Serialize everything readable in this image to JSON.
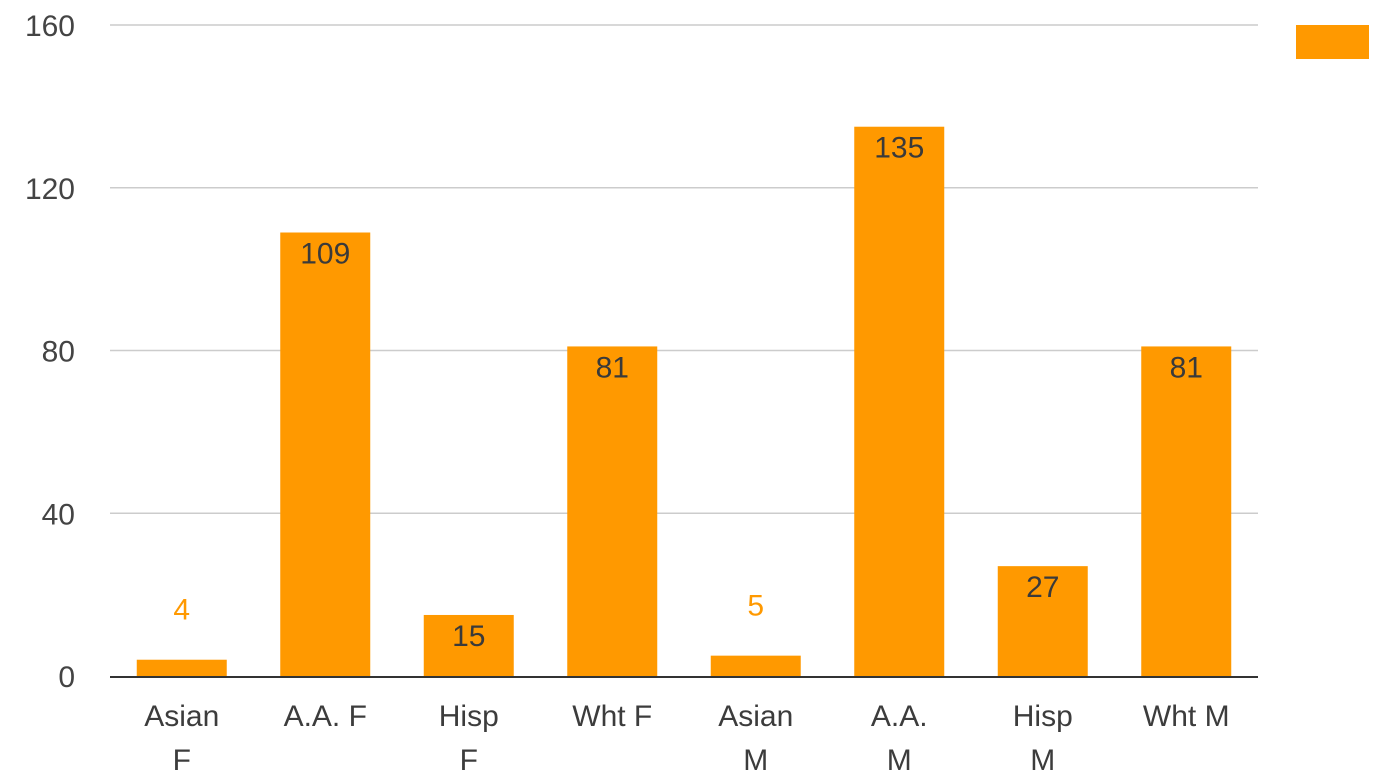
{
  "chart_data": {
    "type": "bar",
    "categories": [
      [
        "Asian",
        "F"
      ],
      [
        "A.A. F"
      ],
      [
        "Hisp",
        "F"
      ],
      [
        "Wht F"
      ],
      [
        "Asian",
        "M"
      ],
      [
        "A.A.",
        "M"
      ],
      [
        "Hisp",
        "M"
      ],
      [
        "Wht M"
      ]
    ],
    "series": [
      {
        "values": [
          4,
          109,
          15,
          81,
          5,
          135,
          27,
          81
        ]
      }
    ],
    "data_labels": [
      "4",
      "109",
      "15",
      "81",
      "5",
      "135",
      "27",
      "81"
    ],
    "ylim": [
      0,
      160
    ],
    "yticks": [
      "0",
      "40",
      "80",
      "120",
      "160"
    ],
    "grid": true,
    "legend": "top-right",
    "colors": {
      "bar": "#ff9900",
      "grid": "#cccccc",
      "axis": "#333333",
      "label_inside": "#3a3a3a",
      "label_outside": "#ff9900"
    }
  }
}
